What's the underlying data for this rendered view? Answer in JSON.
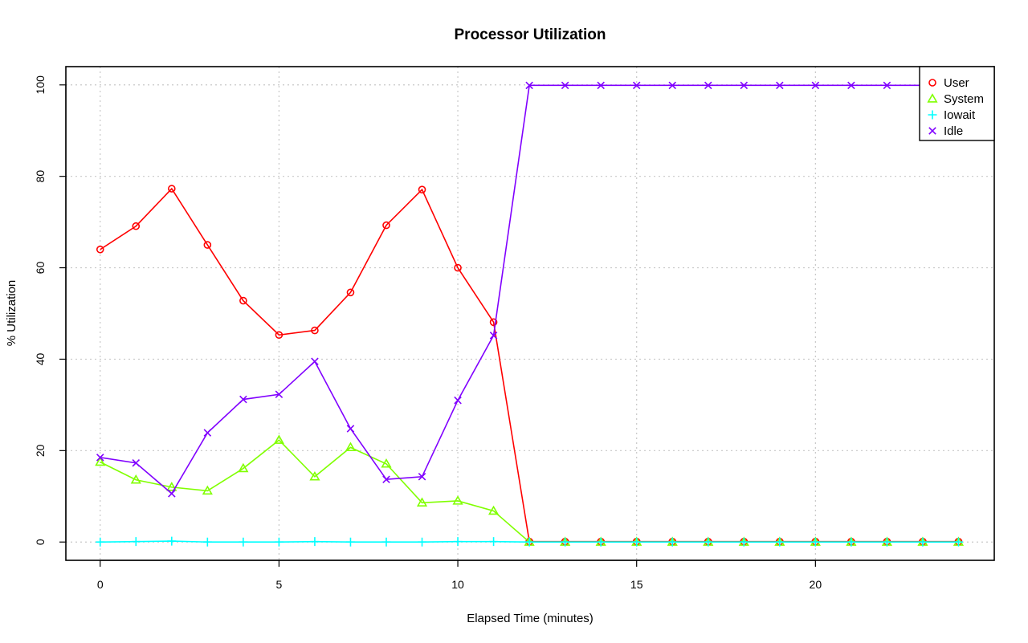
{
  "chart_data": {
    "type": "line",
    "title": "Processor Utilization",
    "xlabel": "Elapsed Time (minutes)",
    "ylabel": "% Utilization",
    "xlim": [
      -0.96,
      25
    ],
    "ylim": [
      -4,
      104
    ],
    "x_ticks": [
      0,
      5,
      10,
      15,
      20
    ],
    "y_ticks": [
      0,
      20,
      40,
      60,
      80,
      100
    ],
    "grid": true,
    "legend_position": "top-right",
    "x": [
      0,
      1,
      2,
      3,
      4,
      5,
      6,
      7,
      8,
      9,
      10,
      11,
      12,
      13,
      14,
      15,
      16,
      17,
      18,
      19,
      20,
      21,
      22,
      23,
      24
    ],
    "series": [
      {
        "name": "User",
        "color": "#ff0000",
        "marker": "circle",
        "values": [
          64.0,
          69.1,
          77.3,
          65.0,
          52.8,
          45.3,
          46.3,
          54.6,
          69.3,
          77.1,
          60.0,
          48.1,
          0.1,
          0.1,
          0.1,
          0.1,
          0.1,
          0.1,
          0.1,
          0.1,
          0.1,
          0.1,
          0.1,
          0.1,
          0.1
        ]
      },
      {
        "name": "System",
        "color": "#80ff00",
        "marker": "triangle",
        "values": [
          17.5,
          13.6,
          12.0,
          11.2,
          16.1,
          22.3,
          14.3,
          20.7,
          17.1,
          8.6,
          9.0,
          6.8,
          0.0,
          0.0,
          0.0,
          0.0,
          0.0,
          0.0,
          0.0,
          0.0,
          0.0,
          0.0,
          0.0,
          0.0,
          0.0
        ]
      },
      {
        "name": "Iowait",
        "color": "#00ffff",
        "marker": "plus",
        "values": [
          0.0,
          0.1,
          0.2,
          0.0,
          0.0,
          0.0,
          0.1,
          0.0,
          0.0,
          0.0,
          0.1,
          0.1,
          0.0,
          0.0,
          0.0,
          0.0,
          0.0,
          0.0,
          0.0,
          0.0,
          0.0,
          0.0,
          0.0,
          0.0,
          0.0
        ]
      },
      {
        "name": "Idle",
        "color": "#8000ff",
        "marker": "cross",
        "values": [
          18.5,
          17.3,
          10.6,
          23.9,
          31.2,
          32.3,
          39.5,
          24.8,
          13.7,
          14.3,
          31.0,
          45.2,
          99.9,
          99.9,
          99.9,
          99.9,
          99.9,
          99.9,
          99.9,
          99.9,
          99.9,
          99.9,
          99.9,
          99.9,
          99.9
        ]
      }
    ]
  }
}
